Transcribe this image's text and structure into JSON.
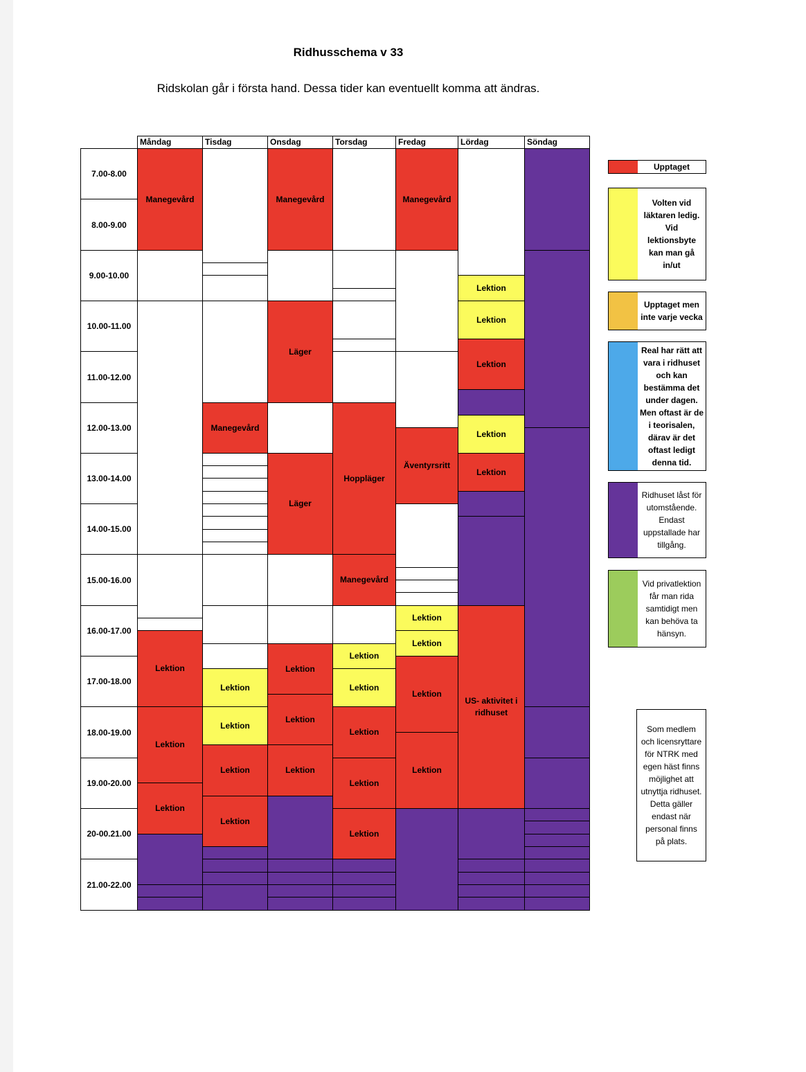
{
  "title": "Ridhusschema v 33",
  "subtitle": "Ridskolan går i första hand. Dessa tider kan eventuellt komma att ändras.",
  "days": [
    "Måndag",
    "Tisdag",
    "Onsdag",
    "Torsdag",
    "Fredag",
    "Lördag",
    "Söndag"
  ],
  "times": [
    "7.00-8.00",
    "8.00-9.00",
    "9.00-10.00",
    "10.00-11.00",
    "11.00-12.00",
    "12.00-13.00",
    "13.00-14.00",
    "14.00-15.00",
    "15.00-16.00",
    "16.00-17.00",
    "17.00-18.00",
    "18.00-19.00",
    "19.00-20.00",
    "20-00.21.00",
    "21.00-22.00"
  ],
  "labels": {
    "manegevard": "Manegevård",
    "lektion": "Lektion",
    "lager": "Läger",
    "hopplager": "Hoppläger",
    "aventyrsritt": "Äventyrsritt",
    "us_aktivitet": "US- aktivitet i ridhuset"
  },
  "colors": {
    "upptaget": "#e8392d",
    "volten": "#fbfb5c",
    "inte_varje_vecka": "#f2c244",
    "real": "#4da9e9",
    "last": "#65349a",
    "privat": "#9ccc5c"
  },
  "legend": {
    "upptaget": "Upptaget",
    "volten": "Volten vid läktaren ledig. Vid lektionsbyte kan man gå in/ut",
    "inte_varje_vecka": "Upptaget men inte varje vecka",
    "real": "Real har rätt att vara i ridhuset och kan bestämma det under dagen. Men oftast är de i teorisalen, därav är det oftast ledigt denna tid.",
    "last": "Ridhuset låst för utomstående. Endast uppstallade har tillgång.",
    "privat": "Vid privatlektion får man rida samtidigt men kan behöva ta hänsyn.",
    "medlem": "Som medlem och licensryttare för NTRK med egen häst finns möjlighet att utnyttja ridhuset. Detta gäller endast när personal finns på plats."
  }
}
